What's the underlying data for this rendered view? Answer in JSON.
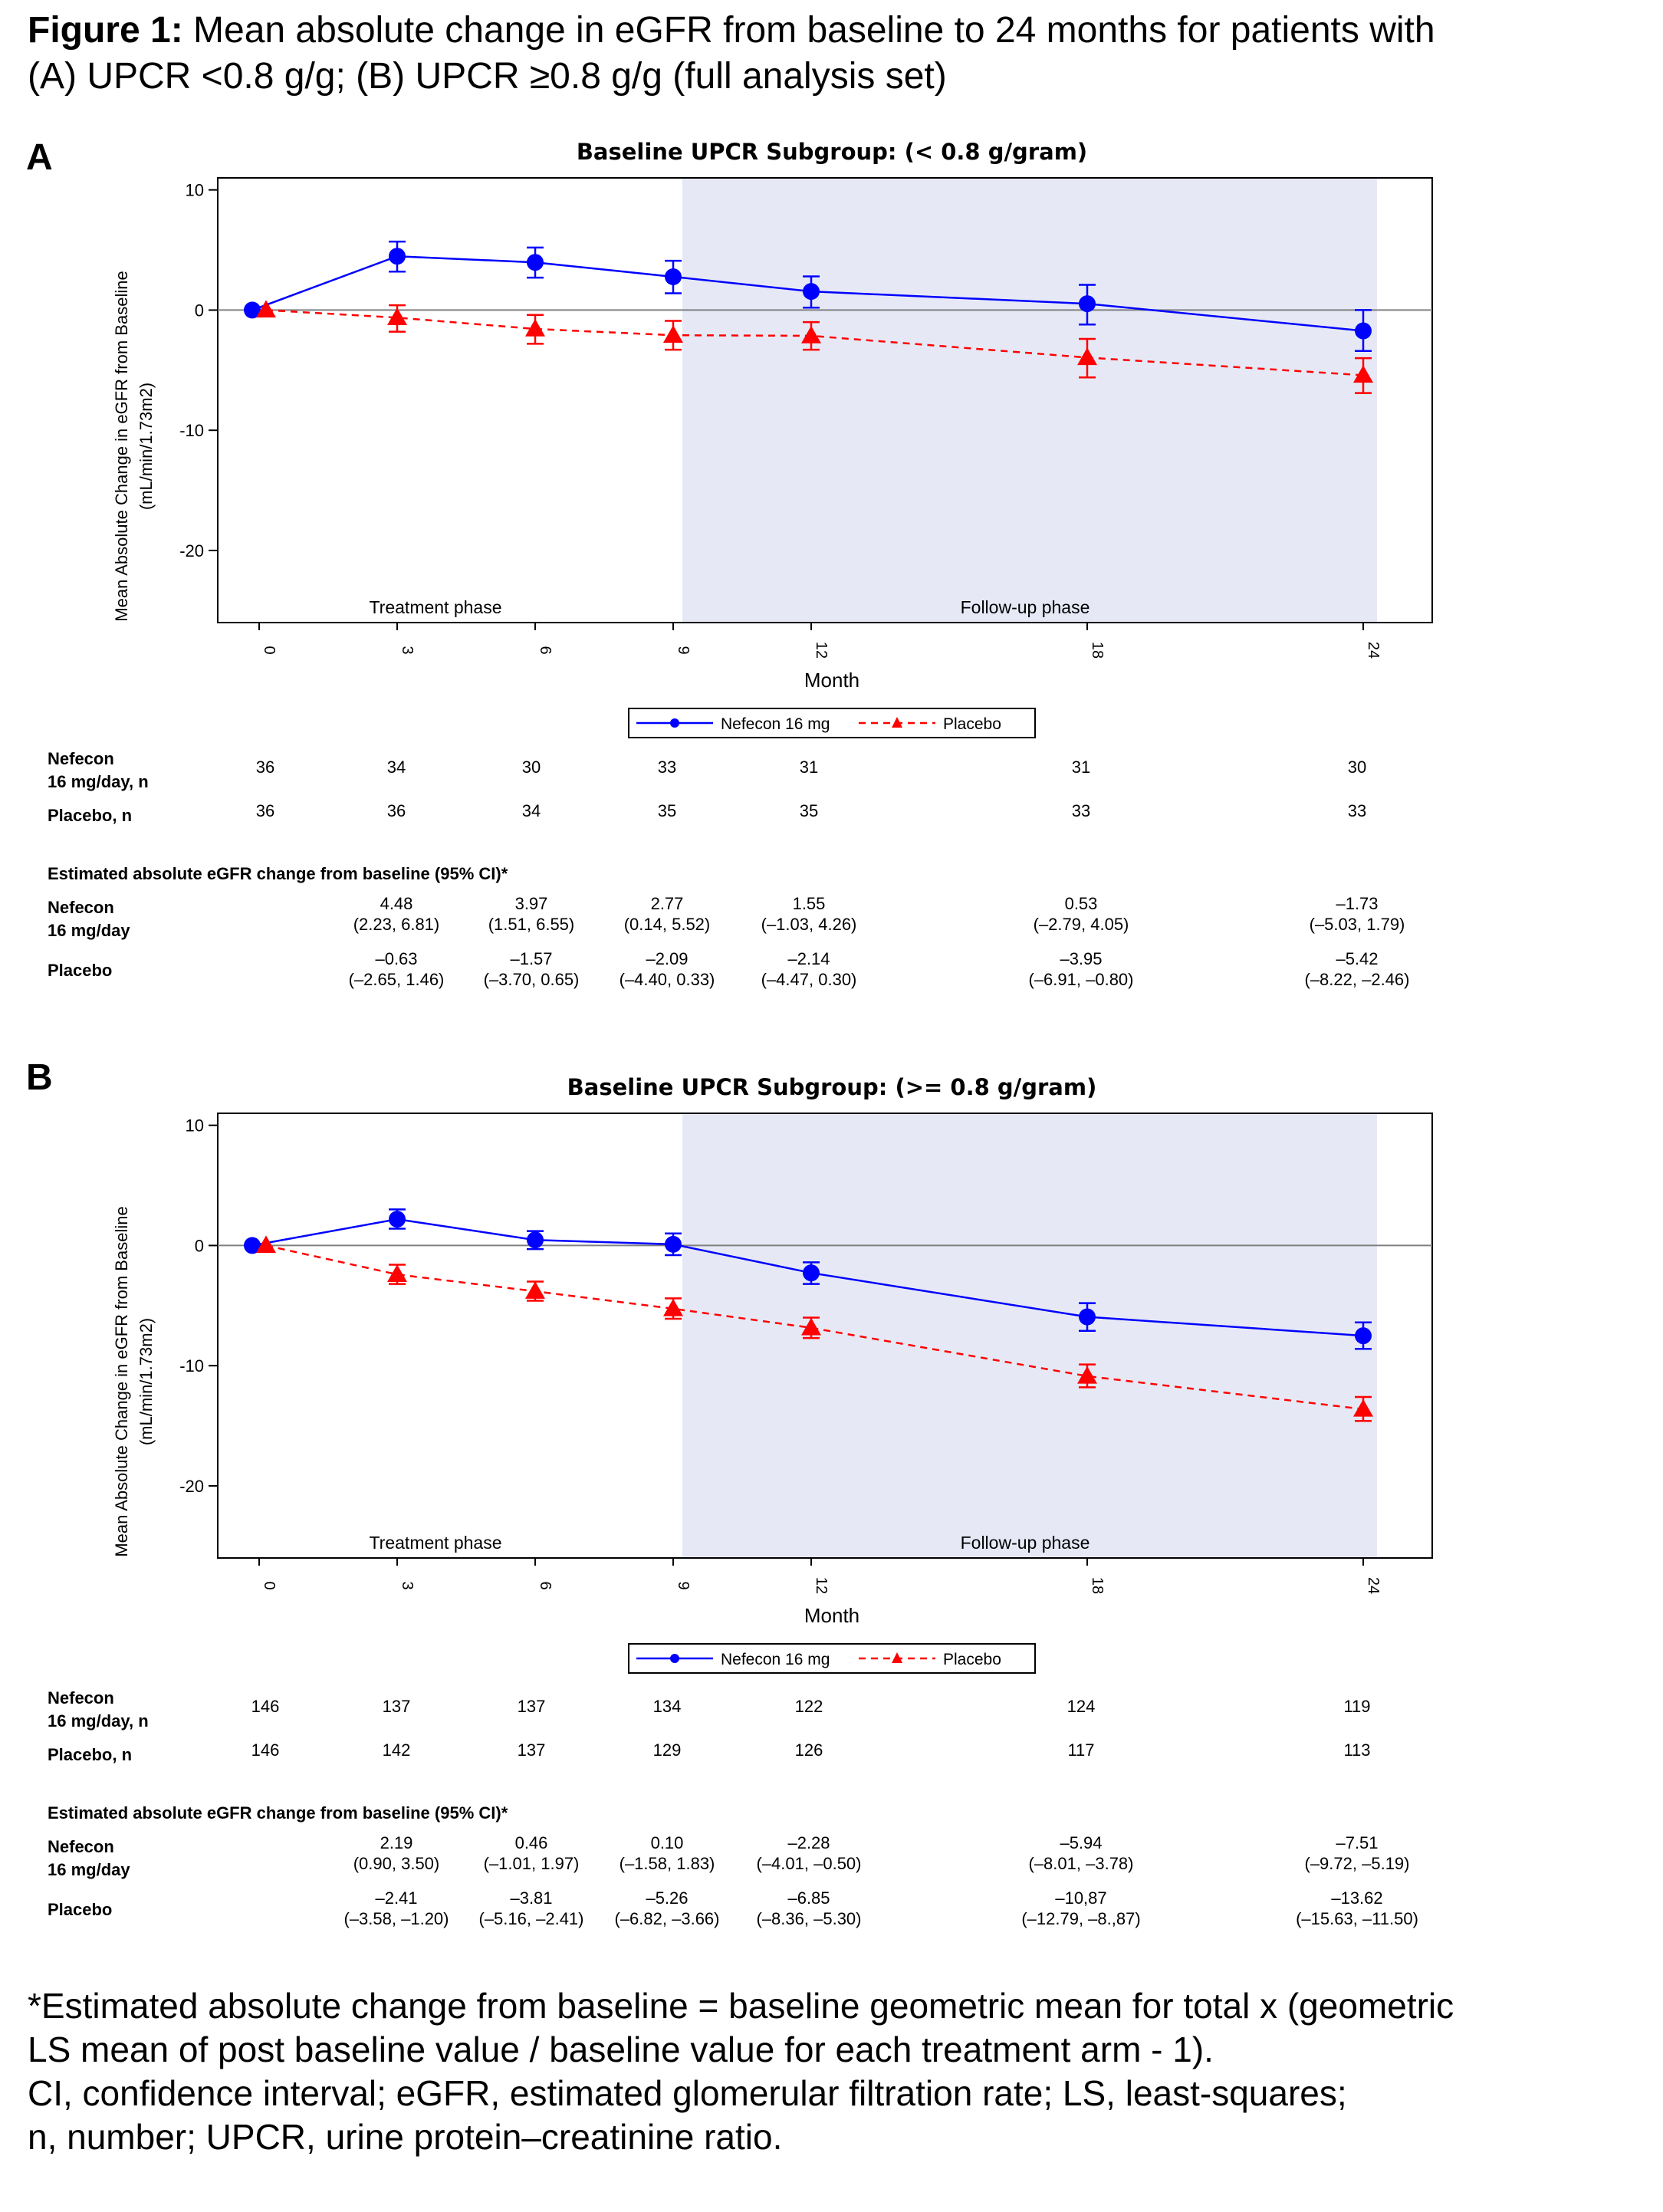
{
  "caption": {
    "bold_prefix": "Figure 1:",
    "line1_rest": " Mean absolute change in eGFR from baseline to 24 months for patients with",
    "line2": "(A) UPCR <0.8 g/g; (B) UPCR ≥0.8 g/g (full analysis set)"
  },
  "footnote": {
    "line1": "*Estimated absolute change from baseline = baseline geometric mean for total x (geometric",
    "line2": "LS mean of post baseline value / baseline value for each treatment arm - 1).",
    "line3": "CI, confidence interval; eGFR, estimated glomerular filtration rate; LS, least-squares;",
    "line4": "n, number; UPCR, urine protein–creatinine ratio."
  },
  "colors": {
    "nefecon": "#0000ff",
    "placebo": "#ff0000",
    "followup_shade": "#e6e9f5",
    "reference_line": "#808080"
  },
  "panels": [
    {
      "letter": "A",
      "table": {
        "nefecon_n_label_1": "Nefecon",
        "nefecon_n_label_2": "16 mg/day, n",
        "placebo_n_label": "Placebo, n",
        "nefecon_n": [
          "36",
          "34",
          "30",
          "33",
          "31",
          "31",
          "30"
        ],
        "placebo_n": [
          "36",
          "36",
          "34",
          "35",
          "35",
          "33",
          "33"
        ],
        "estimate_header": "Estimated absolute eGFR change from baseline (95% CI)*",
        "nefecon_est_label_1": "Nefecon",
        "nefecon_est_label_2": "16 mg/day",
        "placebo_est_label": "Placebo",
        "nefecon_est": [
          "4.48",
          "3.97",
          "2.77",
          "1.55",
          "0.53",
          "–1.73"
        ],
        "nefecon_ci": [
          "(2.23, 6.81)",
          "(1.51, 6.55)",
          "(0.14, 5.52)",
          "(–1.03, 4.26)",
          "(–2.79, 4.05)",
          "(–5.03, 1.79)"
        ],
        "placebo_est": [
          "–0.63",
          "–1.57",
          "–2.09",
          "–2.14",
          "–3.95",
          "–5.42"
        ],
        "placebo_ci": [
          "(–2.65, 1.46)",
          "(–3.70, 0.65)",
          "(–4.40, 0.33)",
          "(–4.47, 0.30)",
          "(–6.91, –0.80)",
          "(–8.22, –2.46)"
        ]
      }
    },
    {
      "letter": "B",
      "table": {
        "nefecon_n_label_1": "Nefecon",
        "nefecon_n_label_2": "16 mg/day, n",
        "placebo_n_label": "Placebo, n",
        "nefecon_n": [
          "146",
          "137",
          "137",
          "134",
          "122",
          "124",
          "119"
        ],
        "placebo_n": [
          "146",
          "142",
          "137",
          "129",
          "126",
          "117",
          "113"
        ],
        "estimate_header": "Estimated absolute eGFR change from baseline (95% CI)*",
        "nefecon_est_label_1": "Nefecon",
        "nefecon_est_label_2": "16 mg/day",
        "placebo_est_label": "Placebo",
        "nefecon_est": [
          "2.19",
          "0.46",
          "0.10",
          "–2.28",
          "–5.94",
          "–7.51"
        ],
        "nefecon_ci": [
          "(0.90, 3.50)",
          "(–1.01, 1.97)",
          "(–1.58, 1.83)",
          "(–4.01, –0.50)",
          "(–8.01, –3.78)",
          "(–9.72, –5.19)"
        ],
        "placebo_est": [
          "–2.41",
          "–3.81",
          "–5.26",
          "–6.85",
          "–10,87",
          "–13.62"
        ],
        "placebo_ci": [
          "(–3.58, –1.20)",
          "(–5.16, –2.41)",
          "(–6.82, –3.66)",
          "(–8.36, –5.30)",
          "(–12.79, –8.,87)",
          "(–15.63, –11.50)"
        ]
      }
    }
  ],
  "chart_data": [
    {
      "type": "line",
      "title": "Baseline UPCR Subgroup: (< 0.8 g/gram)",
      "xlabel": "Month",
      "ylabel_line1": "Mean Absolute Change in eGFR from Baseline",
      "ylabel_line2": "(mL/min/1.73m2)",
      "x_ticks": [
        0,
        3,
        6,
        9,
        12,
        18,
        24
      ],
      "x_tick_labels": [
        "0",
        "3",
        "6",
        "9",
        "12",
        "18",
        "24"
      ],
      "y_ticks": [
        10,
        0,
        -10,
        -20
      ],
      "y_tick_labels": [
        "10",
        "0",
        "-10",
        "-20"
      ],
      "ylim": [
        -26,
        11
      ],
      "phase_labels": [
        "Treatment phase",
        "Follow-up phase"
      ],
      "followup_start_month": 9.2,
      "legend": [
        "Nefecon 16 mg",
        "Placebo"
      ],
      "series": [
        {
          "name": "Nefecon 16 mg",
          "style": "solid",
          "marker": "circle",
          "x": [
            0,
            3,
            6,
            9,
            12,
            18,
            24
          ],
          "y": [
            0,
            4.48,
            3.97,
            2.77,
            1.55,
            0.53,
            -1.73
          ],
          "err_low": [
            0,
            3.2,
            2.7,
            1.4,
            0.2,
            -1.2,
            -3.4
          ],
          "err_high": [
            0,
            5.7,
            5.2,
            4.1,
            2.8,
            2.1,
            0
          ]
        },
        {
          "name": "Placebo",
          "style": "dashed",
          "marker": "triangle",
          "x": [
            0,
            3,
            6,
            9,
            12,
            18,
            24
          ],
          "y": [
            0,
            -0.63,
            -1.57,
            -2.09,
            -2.14,
            -3.95,
            -5.42
          ],
          "err_low": [
            0,
            -1.8,
            -2.8,
            -3.3,
            -3.3,
            -5.6,
            -6.9
          ],
          "err_high": [
            0,
            0.4,
            -0.4,
            -0.9,
            -1.0,
            -2.4,
            -4.0
          ]
        }
      ]
    },
    {
      "type": "line",
      "title": "Baseline UPCR Subgroup: (>= 0.8 g/gram)",
      "xlabel": "Month",
      "ylabel_line1": "Mean Absolute Change in eGFR from Baseline",
      "ylabel_line2": "(mL/min/1.73m2)",
      "x_ticks": [
        0,
        3,
        6,
        9,
        12,
        18,
        24
      ],
      "x_tick_labels": [
        "0",
        "3",
        "6",
        "9",
        "12",
        "18",
        "24"
      ],
      "y_ticks": [
        10,
        0,
        -10,
        -20
      ],
      "y_tick_labels": [
        "10",
        "0",
        "-10",
        "-20"
      ],
      "ylim": [
        -26,
        11
      ],
      "phase_labels": [
        "Treatment phase",
        "Follow-up phase"
      ],
      "followup_start_month": 9.2,
      "legend": [
        "Nefecon 16 mg",
        "Placebo"
      ],
      "series": [
        {
          "name": "Nefecon 16 mg",
          "style": "solid",
          "marker": "circle",
          "x": [
            0,
            3,
            6,
            9,
            12,
            18,
            24
          ],
          "y": [
            0,
            2.19,
            0.46,
            0.1,
            -2.28,
            -5.94,
            -7.51
          ],
          "err_low": [
            0,
            1.4,
            -0.3,
            -0.8,
            -3.2,
            -7.1,
            -8.6
          ],
          "err_high": [
            0,
            3.0,
            1.2,
            1.0,
            -1.4,
            -4.8,
            -6.4
          ]
        },
        {
          "name": "Placebo",
          "style": "dashed",
          "marker": "triangle",
          "x": [
            0,
            3,
            6,
            9,
            12,
            18,
            24
          ],
          "y": [
            0,
            -2.41,
            -3.81,
            -5.26,
            -6.85,
            -10.87,
            -13.62
          ],
          "err_low": [
            0,
            -3.2,
            -4.6,
            -6.1,
            -7.7,
            -11.8,
            -14.6
          ],
          "err_high": [
            0,
            -1.6,
            -3.0,
            -4.4,
            -6.0,
            -9.9,
            -12.6
          ]
        }
      ]
    }
  ]
}
